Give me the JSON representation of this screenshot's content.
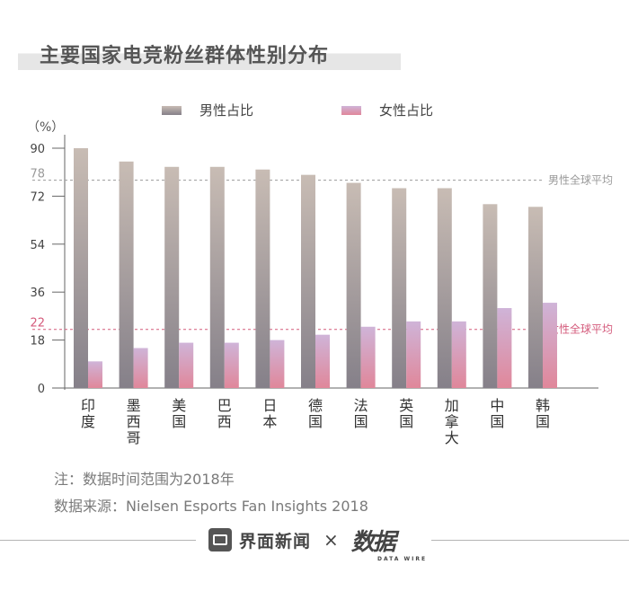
{
  "title": "主要国家电竞粉丝群体性别分布",
  "chart_data": {
    "type": "bar",
    "categories": [
      "印度",
      "墨西哥",
      "美国",
      "巴西",
      "日本",
      "德国",
      "法国",
      "英国",
      "加拿大",
      "中国",
      "韩国"
    ],
    "series": [
      {
        "name": "男性占比",
        "values": [
          90,
          85,
          83,
          83,
          82,
          80,
          77,
          75,
          75,
          69,
          68
        ],
        "color_top": "#c8bcb4",
        "color_bottom": "#858089"
      },
      {
        "name": "女性占比",
        "values": [
          10,
          15,
          17,
          17,
          18,
          20,
          23,
          25,
          25,
          30,
          32
        ],
        "color_top": "#cfb4d8",
        "color_bottom": "#e0879a"
      }
    ],
    "ylabel": "（%）",
    "ylim": [
      0,
      90
    ],
    "yticks": [
      0,
      18,
      36,
      54,
      72,
      90
    ],
    "legend_position": "top",
    "reference_lines": [
      {
        "value": 78,
        "label": "男性全球平均",
        "tick_label": "78",
        "color": "#9a9a9a"
      },
      {
        "value": 22,
        "label": "女性全球平均",
        "tick_label": "22",
        "color": "#d45b7c"
      }
    ]
  },
  "notes": {
    "note": "注：数据时间范围为2018年",
    "source": "数据来源：Nielsen Esports Fan Insights 2018"
  },
  "footer": {
    "brand": "界面新闻",
    "times": "×",
    "logo": "数据",
    "logo_sub": "DATA WIRE"
  }
}
